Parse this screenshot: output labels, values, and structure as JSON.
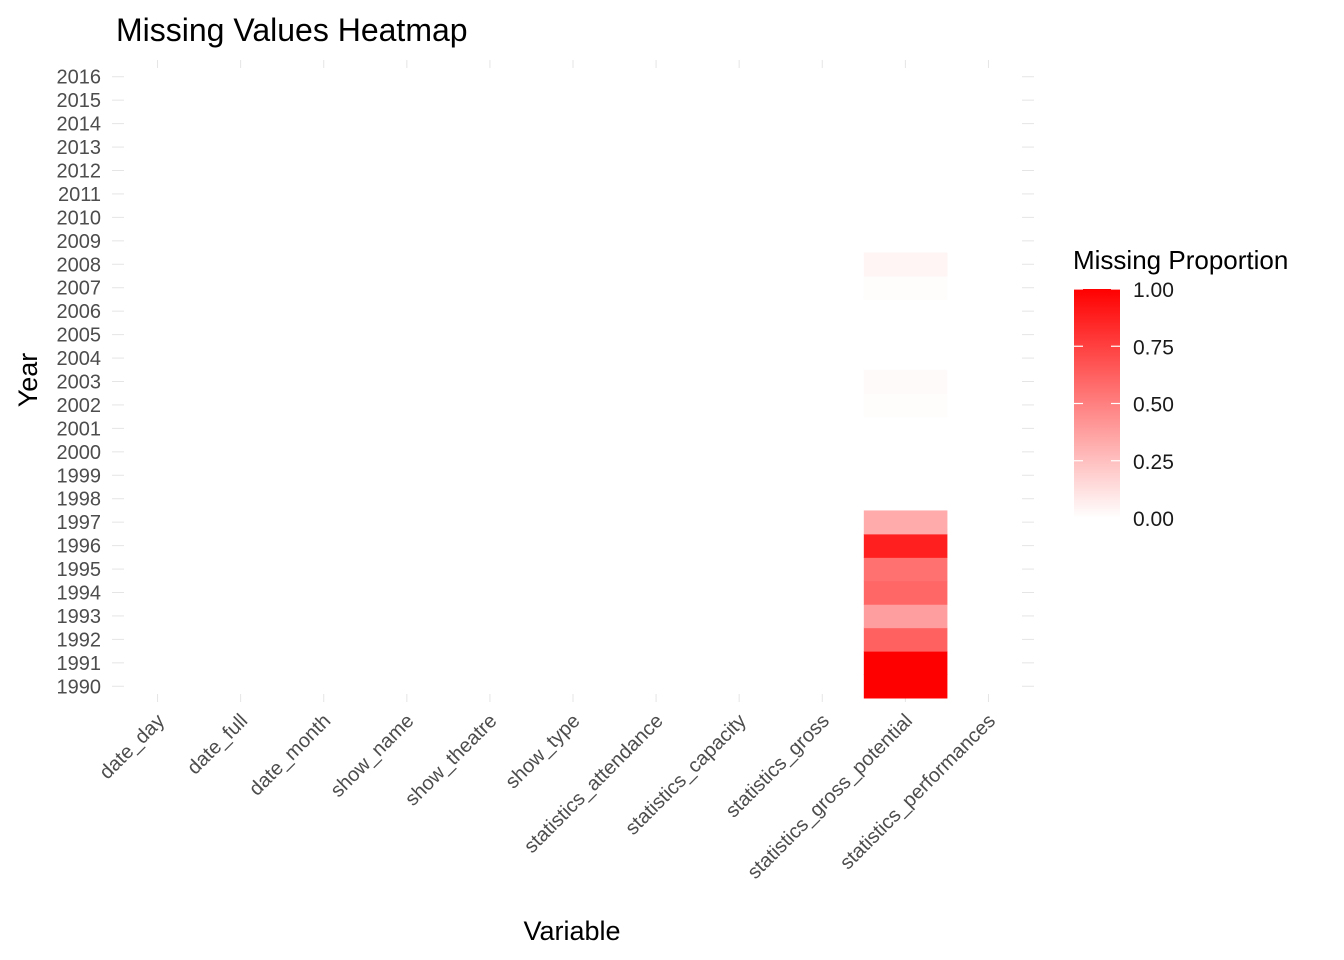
{
  "chart_data": {
    "type": "heatmap",
    "title": "Missing Values Heatmap",
    "xlabel": "Variable",
    "ylabel": "Year",
    "x_categories": [
      "date_day",
      "date_full",
      "date_month",
      "show_name",
      "show_theatre",
      "show_type",
      "statistics_attendance",
      "statistics_capacity",
      "statistics_gross",
      "statistics_gross_potential",
      "statistics_performances"
    ],
    "y_categories": [
      "1990",
      "1991",
      "1992",
      "1993",
      "1994",
      "1995",
      "1996",
      "1997",
      "1998",
      "1999",
      "2000",
      "2001",
      "2002",
      "2003",
      "2004",
      "2005",
      "2006",
      "2007",
      "2008",
      "2009",
      "2010",
      "2011",
      "2012",
      "2013",
      "2014",
      "2015",
      "2016"
    ],
    "cells": [
      {
        "x": "statistics_gross_potential",
        "y": "1990",
        "value": 1.0
      },
      {
        "x": "statistics_gross_potential",
        "y": "1991",
        "value": 1.0
      },
      {
        "x": "statistics_gross_potential",
        "y": "1992",
        "value": 0.62
      },
      {
        "x": "statistics_gross_potential",
        "y": "1993",
        "value": 0.38
      },
      {
        "x": "statistics_gross_potential",
        "y": "1994",
        "value": 0.6
      },
      {
        "x": "statistics_gross_potential",
        "y": "1995",
        "value": 0.56
      },
      {
        "x": "statistics_gross_potential",
        "y": "1996",
        "value": 0.88
      },
      {
        "x": "statistics_gross_potential",
        "y": "1997",
        "value": 0.33
      },
      {
        "x": "statistics_gross_potential",
        "y": "2002",
        "value": 0.01
      },
      {
        "x": "statistics_gross_potential",
        "y": "2003",
        "value": 0.02
      },
      {
        "x": "statistics_gross_potential",
        "y": "2007",
        "value": 0.01
      },
      {
        "x": "statistics_gross_potential",
        "y": "2008",
        "value": 0.04
      }
    ],
    "default_value": 0.0,
    "color_scale": {
      "low": "#ffffff",
      "high": "#ff0000",
      "range": [
        0,
        1
      ]
    },
    "legend": {
      "title": "Missing Proportion",
      "placement": "right",
      "ticks": [
        1.0,
        0.75,
        0.5,
        0.25,
        0.0
      ],
      "tick_labels": [
        "1.00",
        "0.75",
        "0.50",
        "0.25",
        "0.00"
      ]
    },
    "grid": false
  }
}
